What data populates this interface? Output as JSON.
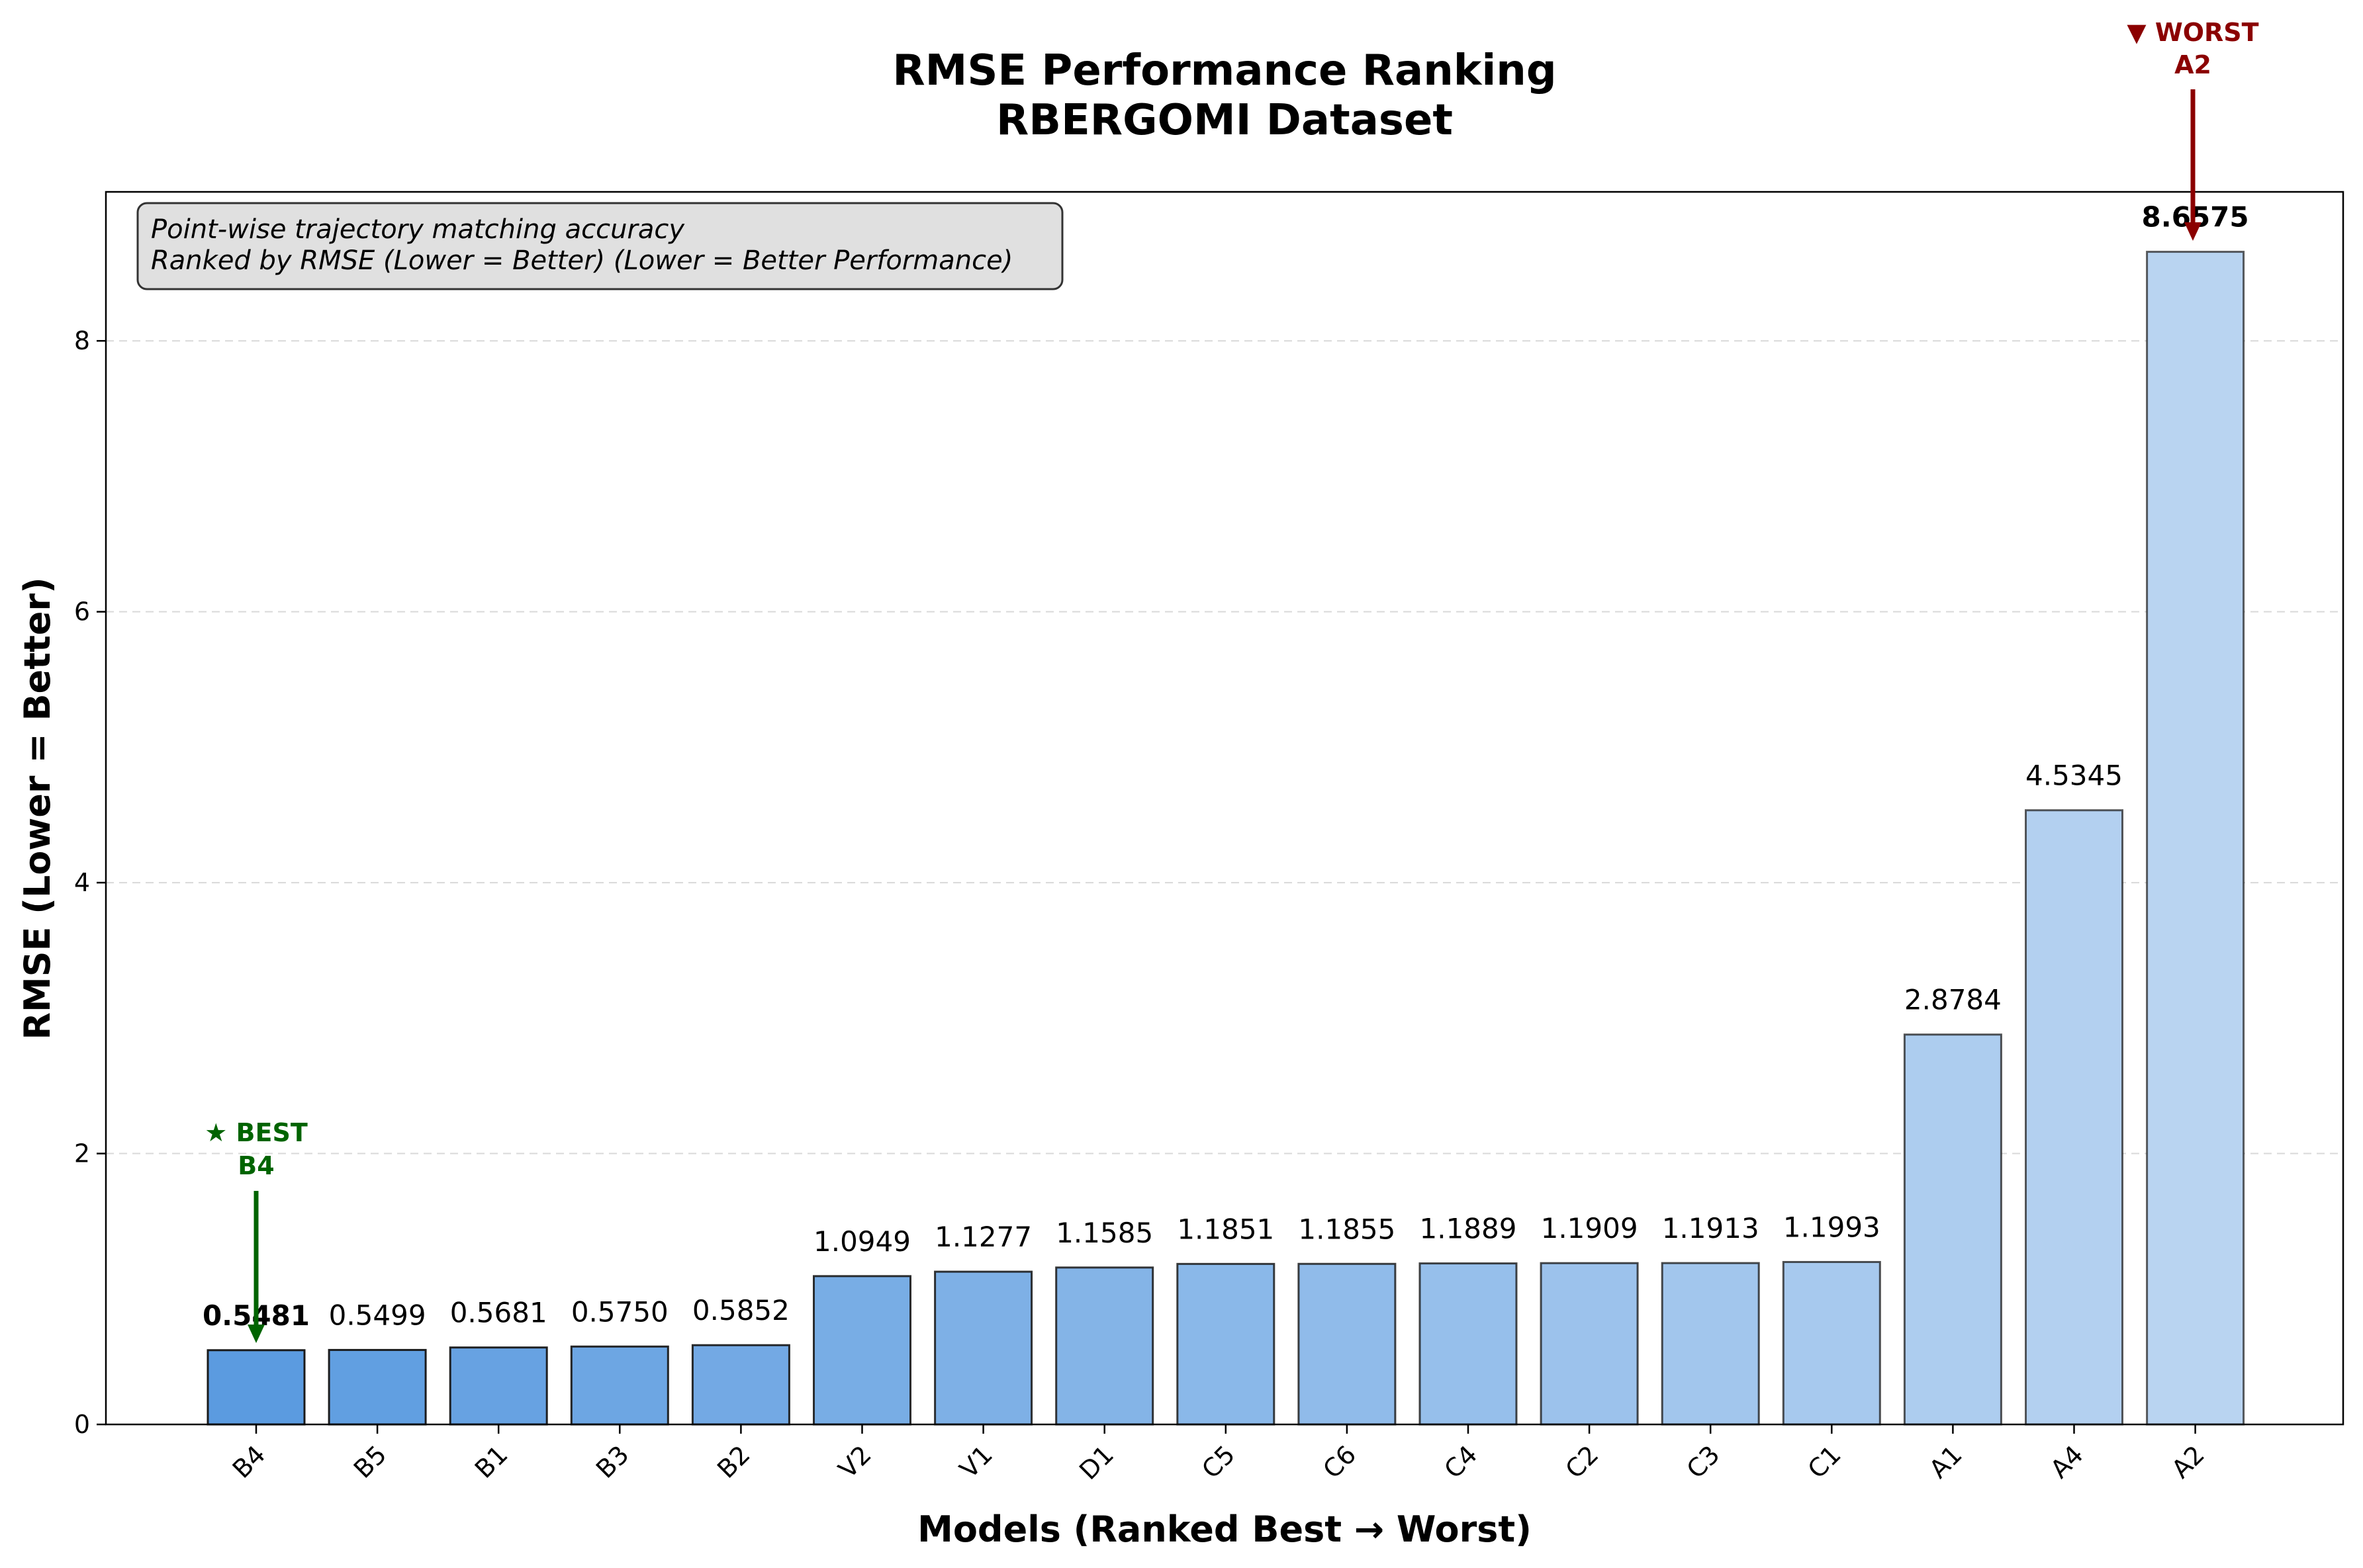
{
  "chart_data": {
    "type": "bar",
    "title": "RMSE Performance Ranking",
    "subtitle": "RBERGOMI Dataset",
    "xlabel": "Models (Ranked Best → Worst)",
    "ylabel": "RMSE (Lower = Better)",
    "ylim": [
      0,
      9.1
    ],
    "yticks": [
      0,
      2,
      4,
      6,
      8
    ],
    "grid": "horizontal dashed",
    "categories": [
      "B4",
      "B5",
      "B1",
      "B3",
      "B2",
      "V2",
      "V1",
      "D1",
      "C5",
      "C6",
      "C4",
      "C2",
      "C3",
      "C1",
      "A1",
      "A4",
      "A2"
    ],
    "values": [
      0.5481,
      0.5499,
      0.5681,
      0.575,
      0.5852,
      1.0949,
      1.1277,
      1.1585,
      1.1851,
      1.1855,
      1.1889,
      1.1909,
      1.1913,
      1.1993,
      2.8784,
      4.5345,
      8.6575
    ],
    "value_labels": [
      "0.5481",
      "0.5499",
      "0.5681",
      "0.5750",
      "0.5852",
      "1.0949",
      "1.1277",
      "1.1585",
      "1.1851",
      "1.1855",
      "1.1889",
      "1.1909",
      "1.1913",
      "1.1993",
      "2.8784",
      "4.5345",
      "8.6575"
    ],
    "info_box": {
      "line1": "Point-wise trajectory matching accuracy",
      "line2": "Ranked by RMSE (Lower = Better) (Lower = Better Performance)",
      "placement": "top-left"
    },
    "best": {
      "label": "★ BEST",
      "model": "B4",
      "color": "#006400"
    },
    "worst": {
      "label": "▼ WORST",
      "model": "A2",
      "color": "#8b0000"
    },
    "colors": {
      "bar_start": "#5b9be0",
      "bar_end": "#b9d4f1",
      "grid": "#d9d9d9"
    }
  }
}
